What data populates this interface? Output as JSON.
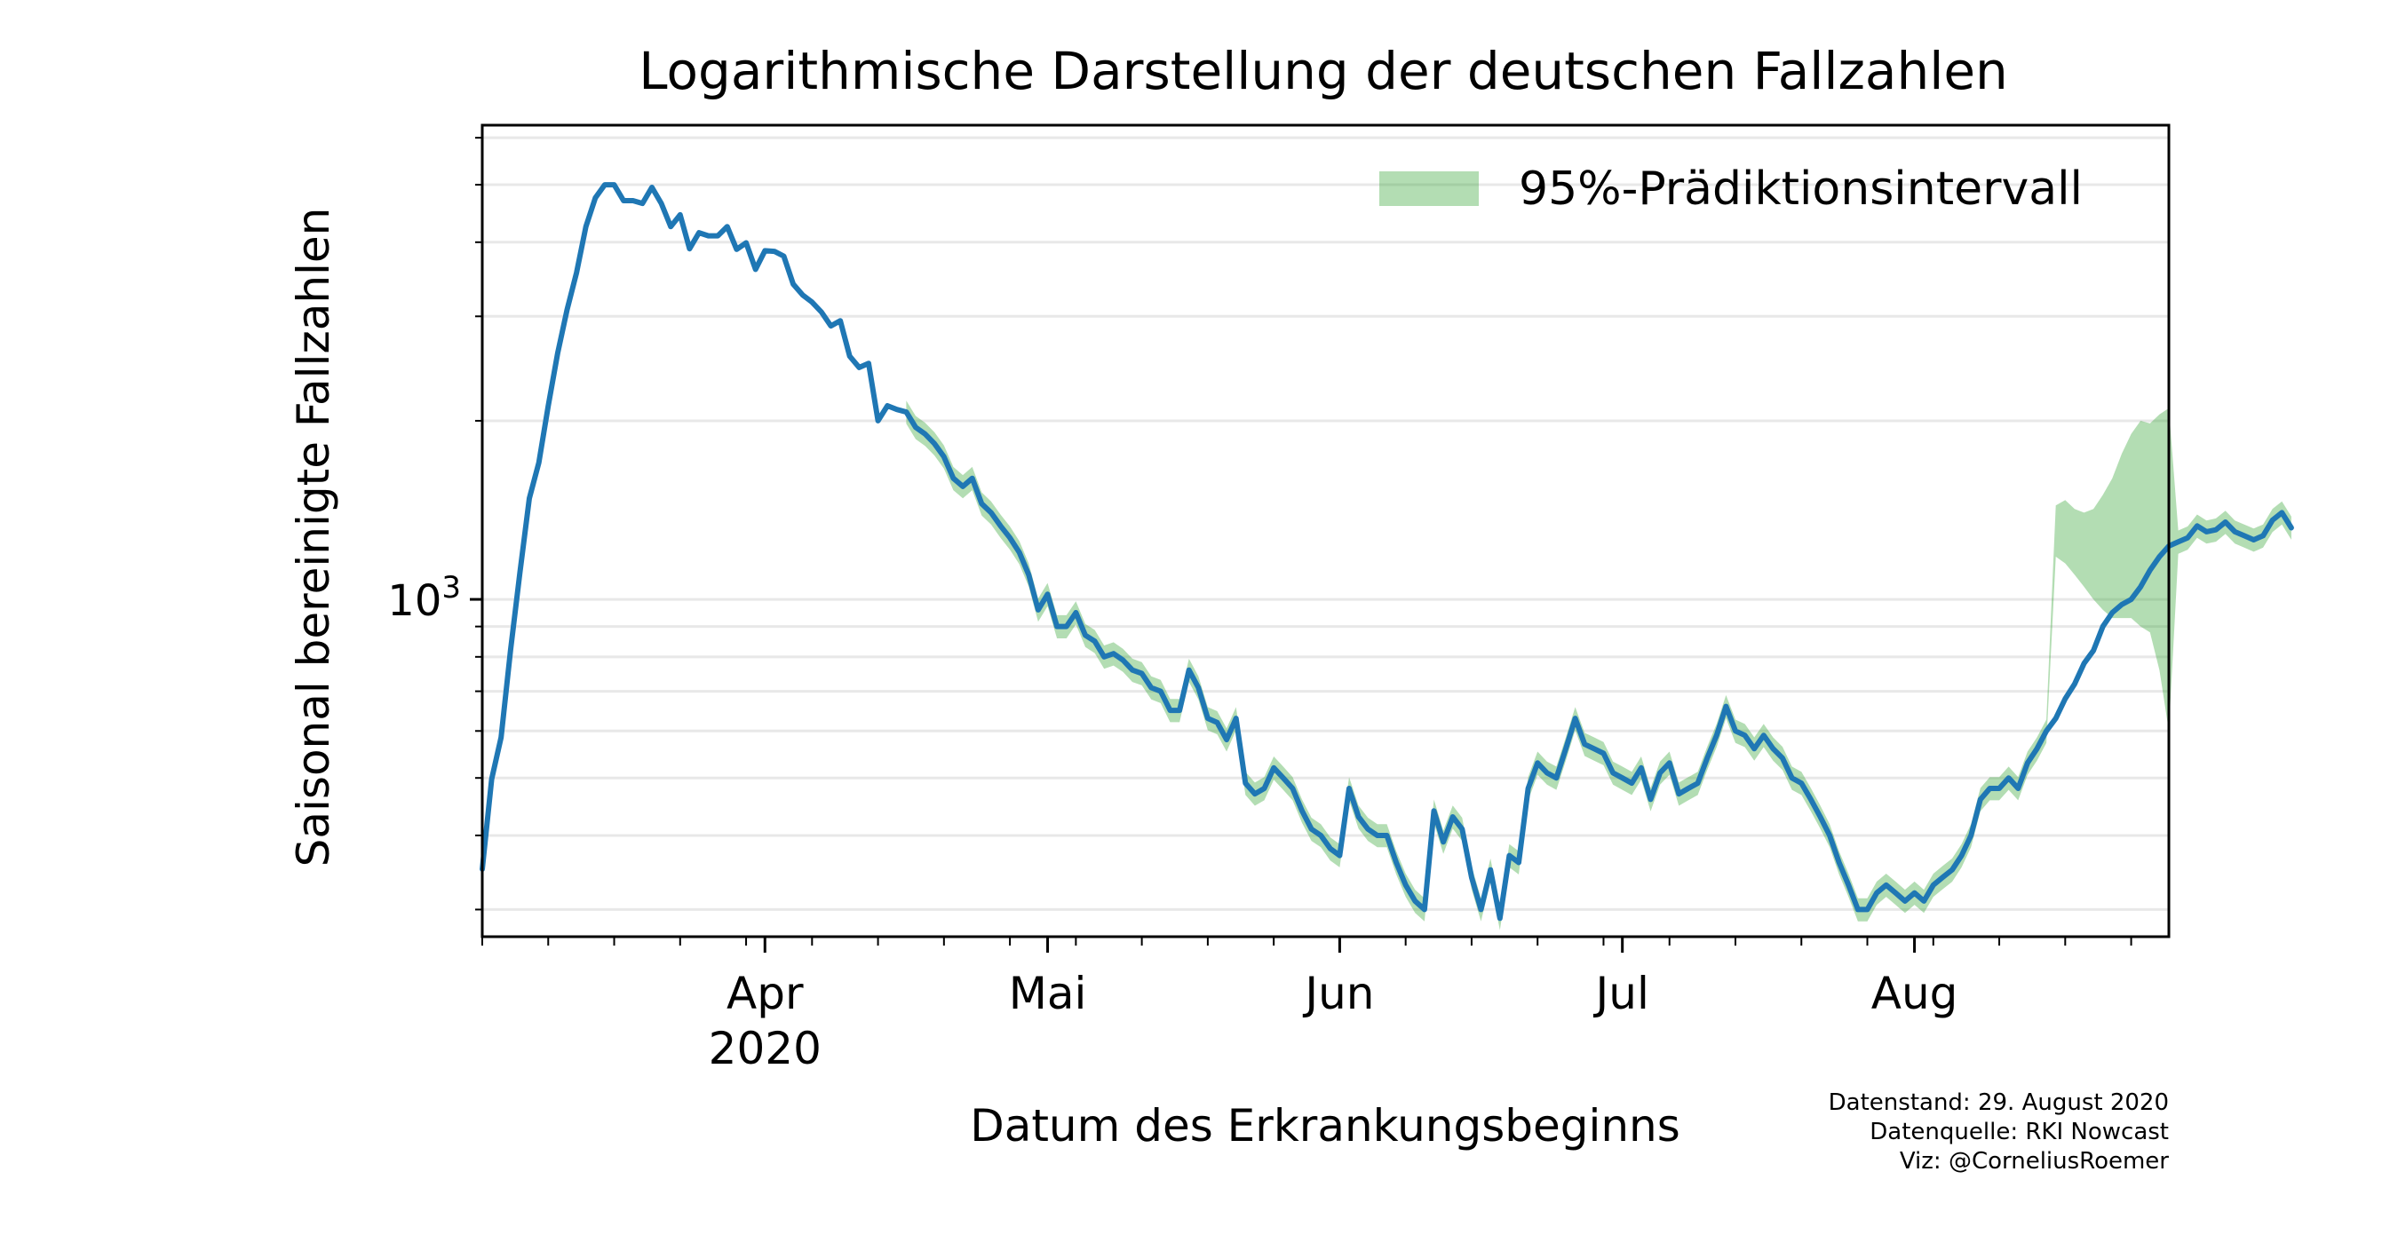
{
  "chart_data": {
    "type": "line",
    "title": "Logarithmische Darstellung der deutschen Fallzahlen",
    "xlabel": "Datum des Erkrankungsbeginns",
    "ylabel": "Saisonal bereinigte Fallzahlen",
    "yscale": "log",
    "xlim": [
      "2020-03-02",
      "2020-08-28"
    ],
    "ylim": [
      270,
      6300
    ],
    "grid": {
      "y_major": true,
      "y_minor": true,
      "x": false
    },
    "legend": {
      "position": "top-right",
      "entries": [
        "95%-Prädiktionsintervall"
      ]
    },
    "x_tick_labels": [
      {
        "date": "2020-04-01",
        "label": "Apr",
        "year_label": "2020"
      },
      {
        "date": "2020-05-01",
        "label": "Mai"
      },
      {
        "date": "2020-06-01",
        "label": "Jun"
      },
      {
        "date": "2020-07-01",
        "label": "Jul"
      },
      {
        "date": "2020-08-01",
        "label": "Aug"
      }
    ],
    "y_tick_labels": [
      {
        "value": 1000,
        "base": "10",
        "exp": "3"
      }
    ],
    "series": [
      {
        "kind": "line",
        "color": "#1f77b4",
        "start": "2020-03-02",
        "values": [
          351,
          498,
          585,
          820,
          1110,
          1480,
          1700,
          2120,
          2600,
          3080,
          3550,
          4250,
          4750,
          5000,
          5000,
          4700,
          4700,
          4650,
          4950,
          4650,
          4250,
          4450,
          3900,
          4150,
          4100,
          4100,
          4250,
          3890,
          3990,
          3600,
          3870,
          3860,
          3790,
          3400,
          3260,
          3170,
          3050,
          2890,
          2950,
          2570,
          2460,
          2500,
          2000,
          2120,
          2090,
          2070,
          1950,
          1900,
          1830,
          1740,
          1600,
          1550,
          1600,
          1450,
          1400,
          1330,
          1270,
          1200,
          1100,
          960,
          1020,
          900,
          900,
          950,
          870,
          850,
          800,
          810,
          790,
          760,
          750,
          710,
          700,
          650,
          650,
          760,
          710,
          630,
          620,
          580,
          630,
          490,
          470,
          480,
          520,
          500,
          480,
          440,
          410,
          400,
          380,
          370,
          480,
          430,
          410,
          400,
          400,
          360,
          330,
          310,
          300,
          440,
          390,
          430,
          410,
          340,
          300,
          350,
          290,
          370,
          360,
          480,
          530,
          510,
          500,
          560,
          630,
          570,
          560,
          550,
          510,
          500,
          490,
          520,
          460,
          510,
          530,
          470,
          480,
          490,
          540,
          590,
          660,
          600,
          590,
          560,
          590,
          560,
          540,
          500,
          490,
          460,
          430,
          400,
          360,
          330,
          300,
          300,
          320,
          330,
          320,
          310,
          320,
          310,
          330,
          340,
          350,
          370,
          400,
          460,
          480,
          480,
          500,
          480,
          530,
          560,
          600,
          630,
          680,
          720,
          780,
          820,
          900,
          950,
          980,
          1000,
          1050,
          1120,
          1180,
          1230,
          1250,
          1270,
          1330,
          1300,
          1310,
          1350,
          1300,
          1280,
          1260,
          1280,
          1360,
          1400,
          1320
        ]
      },
      {
        "kind": "band",
        "name": "95%-Prädiktionsintervall",
        "color": "#2ca02c",
        "opacity": 0.36,
        "start_index": 45,
        "lower_ratio": 0.955,
        "upper_ratio": 1.045,
        "tail": [
          {
            "date": "2020-08-16",
            "lower": 1180,
            "upper": 1440
          },
          {
            "date": "2020-08-17",
            "lower": 1150,
            "upper": 1470
          },
          {
            "date": "2020-08-18",
            "lower": 1100,
            "upper": 1420
          },
          {
            "date": "2020-08-19",
            "lower": 1050,
            "upper": 1400
          },
          {
            "date": "2020-08-20",
            "lower": 1000,
            "upper": 1420
          },
          {
            "date": "2020-08-21",
            "lower": 960,
            "upper": 1500
          },
          {
            "date": "2020-08-22",
            "lower": 930,
            "upper": 1600
          },
          {
            "date": "2020-08-23",
            "lower": 930,
            "upper": 1760
          },
          {
            "date": "2020-08-24",
            "lower": 930,
            "upper": 1900
          },
          {
            "date": "2020-08-25",
            "lower": 900,
            "upper": 2000
          },
          {
            "date": "2020-08-26",
            "lower": 880,
            "upper": 1980
          },
          {
            "date": "2020-08-27",
            "lower": 760,
            "upper": 2050
          },
          {
            "date": "2020-08-28",
            "lower": 600,
            "upper": 2100
          }
        ]
      }
    ]
  },
  "footer": {
    "line1": "Datenstand: 29. August 2020",
    "line2": "Datenquelle: RKI Nowcast",
    "line3": "Viz: @CorneliusRoemer"
  }
}
